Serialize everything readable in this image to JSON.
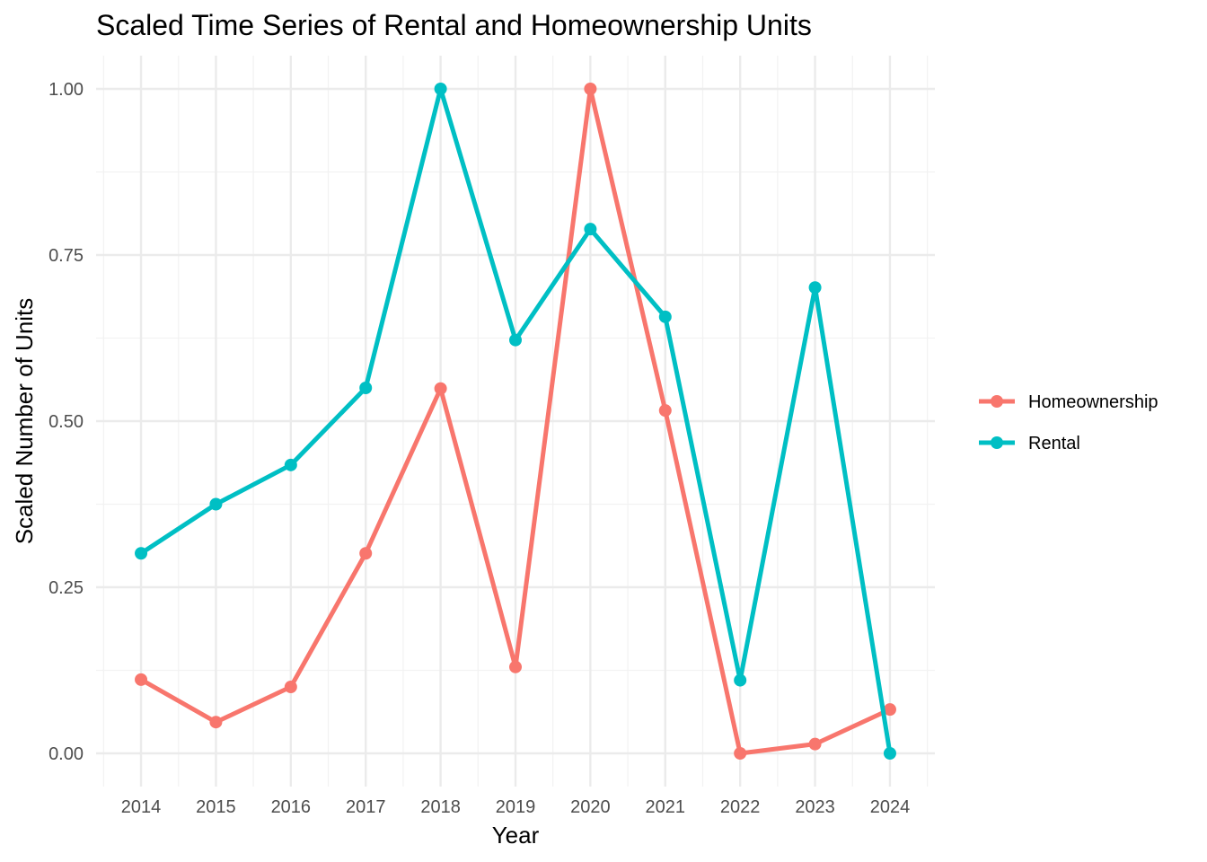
{
  "chart_data": {
    "type": "line",
    "title": "Scaled Time Series of Rental and Homeownership Units",
    "xlabel": "Year",
    "ylabel": "Scaled Number of Units",
    "x": [
      "2014",
      "2015",
      "2016",
      "2017",
      "2018",
      "2019",
      "2020",
      "2021",
      "2022",
      "2023",
      "2024"
    ],
    "ylim": [
      -0.05,
      1.05
    ],
    "y_ticks": [
      "0.00",
      "0.25",
      "0.50",
      "0.75",
      "1.00"
    ],
    "grid": true,
    "legend_position": "right",
    "series": [
      {
        "name": "Homeownership",
        "color": "#F8766D",
        "values": [
          0.111,
          0.047,
          0.1,
          0.301,
          0.549,
          0.13,
          1.0,
          0.516,
          0.0,
          0.014,
          0.066
        ]
      },
      {
        "name": "Rental",
        "color": "#00BFC4",
        "values": [
          0.301,
          0.375,
          0.434,
          0.55,
          1.0,
          0.622,
          0.789,
          0.657,
          0.11,
          0.701,
          0.0
        ]
      }
    ]
  }
}
